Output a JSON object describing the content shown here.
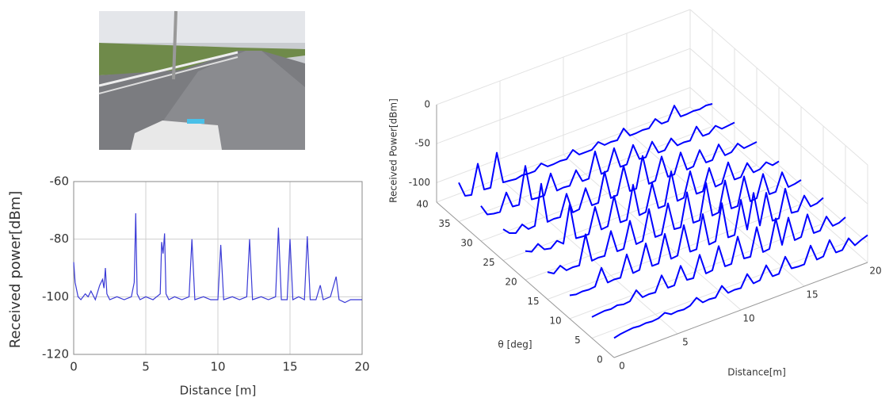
{
  "chart_data": [
    {
      "type": "line",
      "xlabel": "Distance [m]",
      "ylabel": "Received power[dBm]",
      "xlim": [
        0,
        20
      ],
      "xticks": [
        0,
        5,
        10,
        15,
        20
      ],
      "ylim": [
        -120,
        -60
      ],
      "yticks": [
        -120,
        -100,
        -80,
        -60
      ],
      "grid": true,
      "color": "#3a3ad6",
      "x": [
        0,
        0.1,
        0.3,
        0.5,
        0.8,
        1.0,
        1.2,
        1.5,
        1.8,
        2.0,
        2.1,
        2.2,
        2.3,
        2.5,
        3.0,
        3.5,
        4.0,
        4.2,
        4.3,
        4.4,
        4.6,
        5.0,
        5.5,
        6.0,
        6.1,
        6.2,
        6.3,
        6.4,
        6.6,
        7.0,
        7.5,
        8.0,
        8.2,
        8.4,
        9.0,
        9.5,
        10.0,
        10.2,
        10.4,
        11.0,
        11.5,
        12.0,
        12.2,
        12.4,
        13.0,
        13.5,
        14.0,
        14.2,
        14.4,
        14.8,
        15.0,
        15.2,
        15.6,
        16.0,
        16.2,
        16.4,
        16.8,
        17.1,
        17.3,
        17.8,
        18.2,
        18.4,
        18.8,
        19.2,
        19.6,
        20.0
      ],
      "values": [
        -88,
        -95,
        -100,
        -101,
        -99,
        -100,
        -98,
        -101,
        -96,
        -94,
        -97,
        -90,
        -99,
        -101,
        -100,
        -101,
        -100,
        -95,
        -71,
        -99,
        -101,
        -100,
        -101,
        -99,
        -81,
        -85,
        -78,
        -99,
        -101,
        -100,
        -101,
        -100,
        -80,
        -101,
        -100,
        -101,
        -101,
        -82,
        -101,
        -100,
        -101,
        -100,
        -80,
        -101,
        -100,
        -101,
        -100,
        -76,
        -101,
        -101,
        -80,
        -101,
        -100,
        -101,
        -79,
        -101,
        -101,
        -96,
        -101,
        -100,
        -93,
        -101,
        -102,
        -101,
        -101,
        -101
      ]
    },
    {
      "type": "waterfall3d",
      "xlabel": "Distance[m]",
      "ylabel": "θ [deg]",
      "zlabel": "Received Power[dBm]",
      "xlim": [
        0,
        20
      ],
      "xticks": [
        0,
        5,
        10,
        15,
        20
      ],
      "ylim": [
        0,
        40
      ],
      "yticks": [
        0,
        5,
        10,
        15,
        20,
        25,
        30,
        35,
        40
      ],
      "zlim": [
        -125,
        0
      ],
      "zticks": [
        -100,
        -50,
        0
      ],
      "color": "#0000ff",
      "x": [
        0,
        0.5,
        1,
        1.5,
        2,
        2.5,
        3,
        3.5,
        4,
        4.5,
        5,
        5.5,
        6,
        6.5,
        7,
        7.5,
        8,
        8.5,
        9,
        9.5,
        10,
        10.5,
        11,
        11.5,
        12,
        12.5,
        13,
        13.5,
        14,
        14.5,
        15,
        15.5,
        16,
        16.5,
        17,
        17.5,
        18,
        18.5,
        19,
        19.5,
        20
      ],
      "series": [
        {
          "theta": 35,
          "values": [
            -75,
            -95,
            -97,
            -60,
            -96,
            -97,
            -55,
            -96,
            -97,
            -98,
            -96,
            -97,
            -97,
            -90,
            -97,
            -97,
            -96,
            -97,
            -88,
            -97,
            -97,
            -97,
            -90,
            -97,
            -96,
            -97,
            -85,
            -97,
            -97,
            -96,
            -97,
            -88,
            -97,
            -97,
            -80,
            -97,
            -97,
            -96,
            -97,
            -95,
            -96
          ]
        },
        {
          "theta": 30,
          "values": [
            -80,
            -94,
            -96,
            -97,
            -75,
            -96,
            -97,
            -50,
            -96,
            -97,
            -97,
            -72,
            -97,
            -96,
            -97,
            -80,
            -97,
            -97,
            -65,
            -97,
            -96,
            -70,
            -97,
            -97,
            -75,
            -96,
            -97,
            -80,
            -97,
            -97,
            -85,
            -97,
            -96,
            -97,
            -82,
            -97,
            -97,
            -90,
            -97,
            -96,
            -95
          ]
        },
        {
          "theta": 25,
          "values": [
            -85,
            -93,
            -96,
            -88,
            -97,
            -96,
            -45,
            -97,
            -96,
            -97,
            -70,
            -97,
            -96,
            -72,
            -97,
            -97,
            -60,
            -97,
            -96,
            -62,
            -97,
            -97,
            -58,
            -97,
            -96,
            -68,
            -97,
            -97,
            -72,
            -97,
            -96,
            -78,
            -97,
            -97,
            -80,
            -97,
            -96,
            -88,
            -97,
            -96,
            -95
          ]
        },
        {
          "theta": 20,
          "values": [
            -88,
            -92,
            -85,
            -95,
            -97,
            -90,
            -97,
            -50,
            -96,
            -97,
            -97,
            -65,
            -97,
            -96,
            -60,
            -97,
            -97,
            -55,
            -97,
            -96,
            -62,
            -97,
            -97,
            -56,
            -97,
            -96,
            -65,
            -97,
            -97,
            -70,
            -97,
            -96,
            -72,
            -97,
            -97,
            -82,
            -97,
            -96,
            -90,
            -97,
            -95
          ]
        },
        {
          "theta": 15,
          "values": [
            -90,
            -95,
            -88,
            -97,
            -96,
            -97,
            -60,
            -97,
            -96,
            -97,
            -68,
            -97,
            -97,
            -64,
            -97,
            -96,
            -58,
            -97,
            -97,
            -60,
            -96,
            -97,
            -55,
            -97,
            -97,
            -52,
            -97,
            -96,
            -58,
            -97,
            -97,
            -62,
            -97,
            -96,
            -68,
            -97,
            -97,
            -75,
            -97,
            -96,
            -94
          ]
        },
        {
          "theta": 10,
          "values": [
            -95,
            -97,
            -96,
            -97,
            -96,
            -75,
            -97,
            -96,
            -97,
            -70,
            -97,
            -96,
            -65,
            -97,
            -97,
            -62,
            -97,
            -96,
            -60,
            -97,
            -97,
            -55,
            -97,
            -96,
            -50,
            -97,
            -97,
            -55,
            -96,
            -52,
            -97,
            -58,
            -97,
            -97,
            -62,
            -96,
            -97,
            -80,
            -97,
            -96,
            -92
          ]
        },
        {
          "theta": 5,
          "values": [
            -98,
            -97,
            -96,
            -97,
            -95,
            -97,
            -96,
            -85,
            -97,
            -96,
            -97,
            -78,
            -97,
            -97,
            -75,
            -96,
            -97,
            -70,
            -97,
            -96,
            -68,
            -97,
            -97,
            -65,
            -96,
            -97,
            -62,
            -97,
            -96,
            -60,
            -97,
            -65,
            -97,
            -96,
            -70,
            -97,
            -97,
            -82,
            -97,
            -96,
            -92
          ]
        },
        {
          "theta": 0,
          "values": [
            -100,
            -98,
            -97,
            -96,
            -97,
            -96,
            -97,
            -96,
            -92,
            -97,
            -96,
            -97,
            -95,
            -88,
            -97,
            -96,
            -97,
            -85,
            -97,
            -96,
            -97,
            -82,
            -97,
            -96,
            -80,
            -97,
            -97,
            -78,
            -96,
            -97,
            -97,
            -76,
            -97,
            -96,
            -78,
            -97,
            -97,
            -85,
            -97,
            -93,
            -90
          ]
        }
      ]
    }
  ]
}
